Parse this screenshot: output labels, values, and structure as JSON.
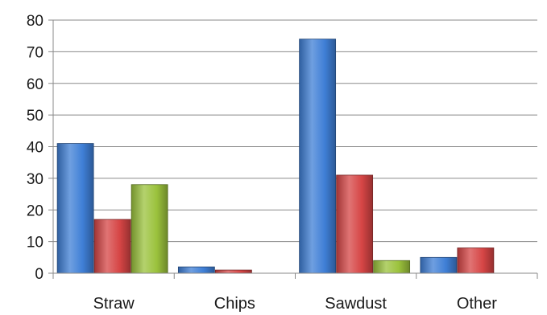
{
  "chart_data": {
    "type": "bar",
    "categories": [
      "Straw",
      "Chips",
      "Sawdust",
      "Other"
    ],
    "series": [
      {
        "color": "#3f7fd6",
        "values": [
          41,
          2,
          74,
          5
        ]
      },
      {
        "color": "#d64545",
        "values": [
          17,
          1,
          31,
          8
        ]
      },
      {
        "color": "#9bc23c",
        "values": [
          28,
          0,
          4,
          0
        ]
      }
    ],
    "ylim": [
      0,
      80
    ],
    "yticks": [
      0,
      10,
      20,
      30,
      40,
      50,
      60,
      70,
      80
    ],
    "grid": true,
    "title": "",
    "xlabel": "",
    "ylabel": ""
  }
}
